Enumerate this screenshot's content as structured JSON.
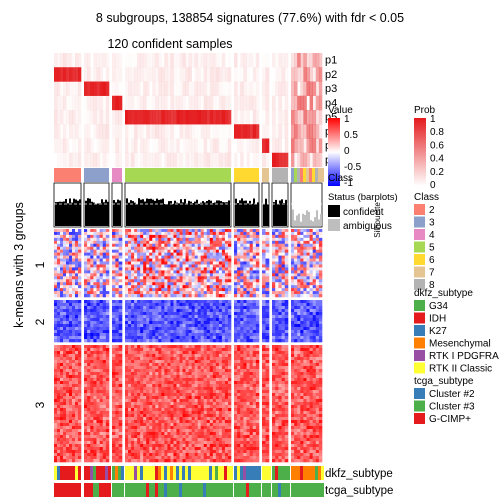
{
  "title": "8 subgroups, 138854 signatures (77.6%) with fdr < 0.05",
  "subtitle": "120 confident samples",
  "y_axis_label": "k-means with 3 groups",
  "colors": {
    "prob_high": "#E41A1C",
    "value_high": "#FF0000",
    "value_mid": "#FFFFFF",
    "value_low": "#0000FF"
  },
  "chart_data": {
    "type": "heatmap",
    "prob_rows": [
      "p1",
      "p2",
      "p3",
      "p4",
      "p5",
      "p6",
      "p7",
      "p8"
    ],
    "row_groups": [
      "1",
      "2",
      "3"
    ],
    "bottom_annotations": [
      "dkfz_subtype",
      "tcga_subtype"
    ],
    "legends": {
      "value": {
        "title": "Value",
        "ticks": [
          "1",
          "0.5",
          "0",
          "-0.5",
          "-1"
        ]
      },
      "class_overlay": {
        "title": "Class"
      },
      "prob": {
        "title": "Prob",
        "ticks": [
          "1",
          "0.8",
          "0.6",
          "0.4",
          "0.2",
          "0"
        ]
      },
      "silhouette": {
        "title": "Silhouette"
      },
      "status": {
        "title": "Status (barplots)",
        "items": [
          {
            "label": "confident",
            "color": "#000000"
          },
          {
            "label": "ambiguous",
            "color": "#BEBEBE"
          }
        ]
      },
      "class": {
        "title": "Class",
        "items": [
          {
            "label": "2",
            "color": "#FB8072"
          },
          {
            "label": "3",
            "color": "#8DA0CB"
          },
          {
            "label": "4",
            "color": "#E78AC3"
          },
          {
            "label": "5",
            "color": "#A6D854"
          },
          {
            "label": "6",
            "color": "#FFD92F"
          },
          {
            "label": "7",
            "color": "#E5C494"
          },
          {
            "label": "8",
            "color": "#B3B3B3"
          }
        ]
      },
      "dkfz_subtype": {
        "title": "dkfz_subtype",
        "items": [
          {
            "label": "G34",
            "color": "#4DAF4A"
          },
          {
            "label": "IDH",
            "color": "#E41A1C"
          },
          {
            "label": "K27",
            "color": "#377EB8"
          },
          {
            "label": "Mesenchymal",
            "color": "#FF7F00"
          },
          {
            "label": "RTK I PDGFRA",
            "color": "#984EA3"
          },
          {
            "label": "RTK II Classic",
            "color": "#FFFF33"
          }
        ]
      },
      "tcga_subtype": {
        "title": "tcga_subtype",
        "items": [
          {
            "label": "Cluster #2",
            "color": "#377EB8"
          },
          {
            "label": "Cluster #3",
            "color": "#4DAF4A"
          },
          {
            "label": "G-CIMP+",
            "color": "#E41A1C"
          }
        ]
      }
    }
  }
}
